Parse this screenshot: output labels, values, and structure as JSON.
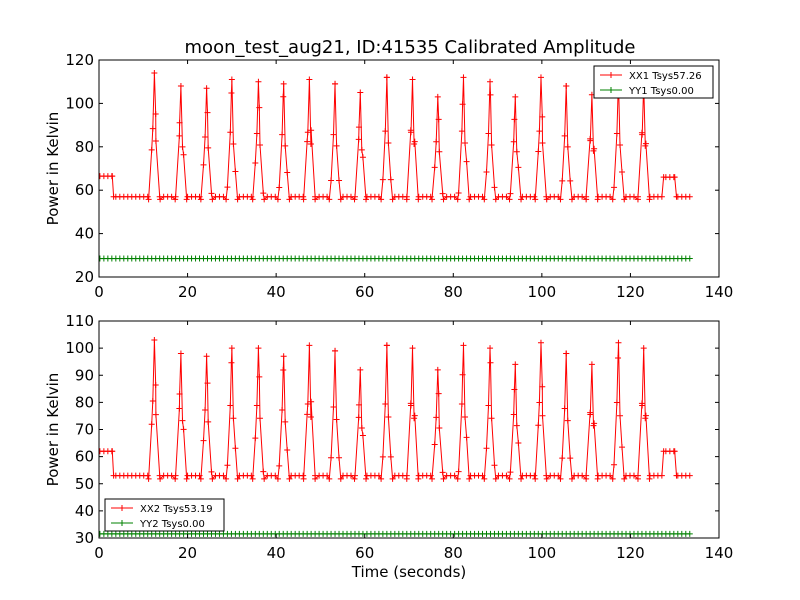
{
  "chart_data": [
    {
      "type": "line",
      "title": "moon_test_aug21, ID:41535 Calibrated Amplitude",
      "xlabel": "",
      "ylabel": "Power in Kelvin",
      "xlim": [
        0,
        140
      ],
      "ylim": [
        20,
        120
      ],
      "xticks": [
        "0",
        "20",
        "40",
        "60",
        "80",
        "100",
        "120",
        "140"
      ],
      "yticks": [
        "20",
        "40",
        "60",
        "80",
        "100",
        "120"
      ],
      "grid": false,
      "legend_position": "top-right",
      "baseline": 57,
      "pre_level": 66.5,
      "post_level": 66,
      "pre_end": 3,
      "post_start": 127.5,
      "post_end": 130,
      "x_end": 133.5,
      "peaks": [
        {
          "x": 12.5,
          "y": 114
        },
        {
          "x": 18.5,
          "y": 108
        },
        {
          "x": 24.3,
          "y": 107
        },
        {
          "x": 30.0,
          "y": 111
        },
        {
          "x": 36.0,
          "y": 110
        },
        {
          "x": 41.7,
          "y": 109
        },
        {
          "x": 47.5,
          "y": 111
        },
        {
          "x": 53.3,
          "y": 109
        },
        {
          "x": 59.0,
          "y": 105
        },
        {
          "x": 65.0,
          "y": 112
        },
        {
          "x": 70.8,
          "y": 111
        },
        {
          "x": 76.5,
          "y": 103
        },
        {
          "x": 82.3,
          "y": 112
        },
        {
          "x": 88.3,
          "y": 110
        },
        {
          "x": 94.0,
          "y": 103
        },
        {
          "x": 99.8,
          "y": 112
        },
        {
          "x": 105.5,
          "y": 108
        },
        {
          "x": 111.3,
          "y": 104
        },
        {
          "x": 117.3,
          "y": 110
        },
        {
          "x": 123.0,
          "y": 109
        }
      ],
      "series": [
        {
          "name": "XX1 Tsys57.26",
          "color": "#ff0000"
        },
        {
          "name": "YY1 Tsys0.00",
          "color": "#008000",
          "constant": 28.5
        }
      ]
    },
    {
      "type": "line",
      "title": "",
      "xlabel": "Time (seconds)",
      "ylabel": "Power in Kelvin",
      "xlim": [
        0,
        140
      ],
      "ylim": [
        30,
        110
      ],
      "xticks": [
        "0",
        "20",
        "40",
        "60",
        "80",
        "100",
        "120",
        "140"
      ],
      "yticks": [
        "30",
        "40",
        "50",
        "60",
        "70",
        "80",
        "90",
        "100",
        "110"
      ],
      "grid": false,
      "legend_position": "bottom-left",
      "baseline": 53,
      "pre_level": 62,
      "post_level": 62,
      "pre_end": 3,
      "post_start": 127.5,
      "post_end": 130,
      "x_end": 133.5,
      "peaks": [
        {
          "x": 12.5,
          "y": 103
        },
        {
          "x": 18.5,
          "y": 98
        },
        {
          "x": 24.3,
          "y": 97
        },
        {
          "x": 30.0,
          "y": 100
        },
        {
          "x": 36.0,
          "y": 100
        },
        {
          "x": 41.7,
          "y": 97
        },
        {
          "x": 47.5,
          "y": 101
        },
        {
          "x": 53.3,
          "y": 99
        },
        {
          "x": 59.0,
          "y": 92
        },
        {
          "x": 65.0,
          "y": 101
        },
        {
          "x": 70.8,
          "y": 100
        },
        {
          "x": 76.5,
          "y": 92
        },
        {
          "x": 82.3,
          "y": 101
        },
        {
          "x": 88.3,
          "y": 100
        },
        {
          "x": 94.0,
          "y": 94
        },
        {
          "x": 99.8,
          "y": 102
        },
        {
          "x": 105.5,
          "y": 98
        },
        {
          "x": 111.3,
          "y": 94
        },
        {
          "x": 117.3,
          "y": 102
        },
        {
          "x": 123.0,
          "y": 100
        }
      ],
      "series": [
        {
          "name": "XX2 Tsys53.19",
          "color": "#ff0000"
        },
        {
          "name": "YY2 Tsys0.00",
          "color": "#008000",
          "constant": 31.5
        }
      ]
    }
  ]
}
